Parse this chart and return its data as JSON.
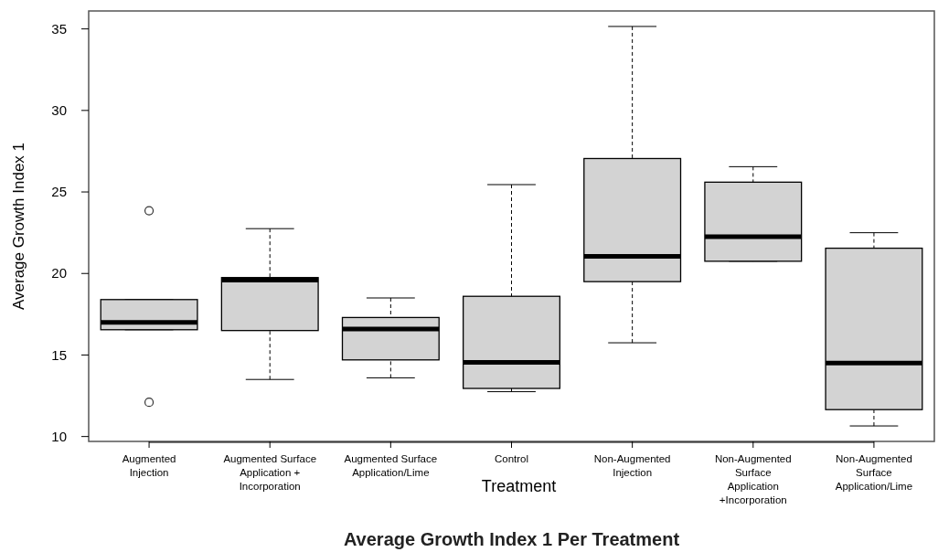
{
  "chart_data": {
    "type": "box",
    "title": "Average Growth Index 1 Per Treatment",
    "xlabel": "Treatment",
    "ylabel": "Average Growth Index 1",
    "categories": [
      "Augmented Injection",
      "Augmented Surface Application + Incorporation",
      "Augmented Surface Application/Lime",
      "Control",
      "Non-Augmented Injection",
      "Non-Augmented Surface Application +Incorporation",
      "Non-Augmented Surface Application/Lime"
    ],
    "color": "#d3d3d3",
    "boxes": [
      {
        "low": 16.55,
        "q1": 16.55,
        "median": 17.0,
        "q3": 18.4,
        "high": 18.4,
        "outliers": [
          23.85,
          12.1
        ]
      },
      {
        "low": 13.5,
        "q1": 16.5,
        "median": 19.6,
        "q3": 19.75,
        "high": 22.75
      },
      {
        "low": 13.6,
        "q1": 14.7,
        "median": 16.6,
        "q3": 17.3,
        "high": 18.5
      },
      {
        "low": 12.75,
        "q1": 12.95,
        "median": 14.55,
        "q3": 18.6,
        "high": 25.45
      },
      {
        "low": 15.75,
        "q1": 19.5,
        "median": 21.05,
        "q3": 27.05,
        "high": 35.15
      },
      {
        "low": 20.75,
        "q1": 20.75,
        "median": 22.25,
        "q3": 25.6,
        "high": 26.55
      },
      {
        "low": 10.65,
        "q1": 11.65,
        "median": 14.5,
        "q3": 21.55,
        "high": 22.5
      }
    ],
    "ylim": [
      9.7,
      36.1
    ],
    "yticks": [
      10,
      15,
      20,
      25,
      30,
      35
    ],
    "grid": false,
    "marker": "circle"
  }
}
